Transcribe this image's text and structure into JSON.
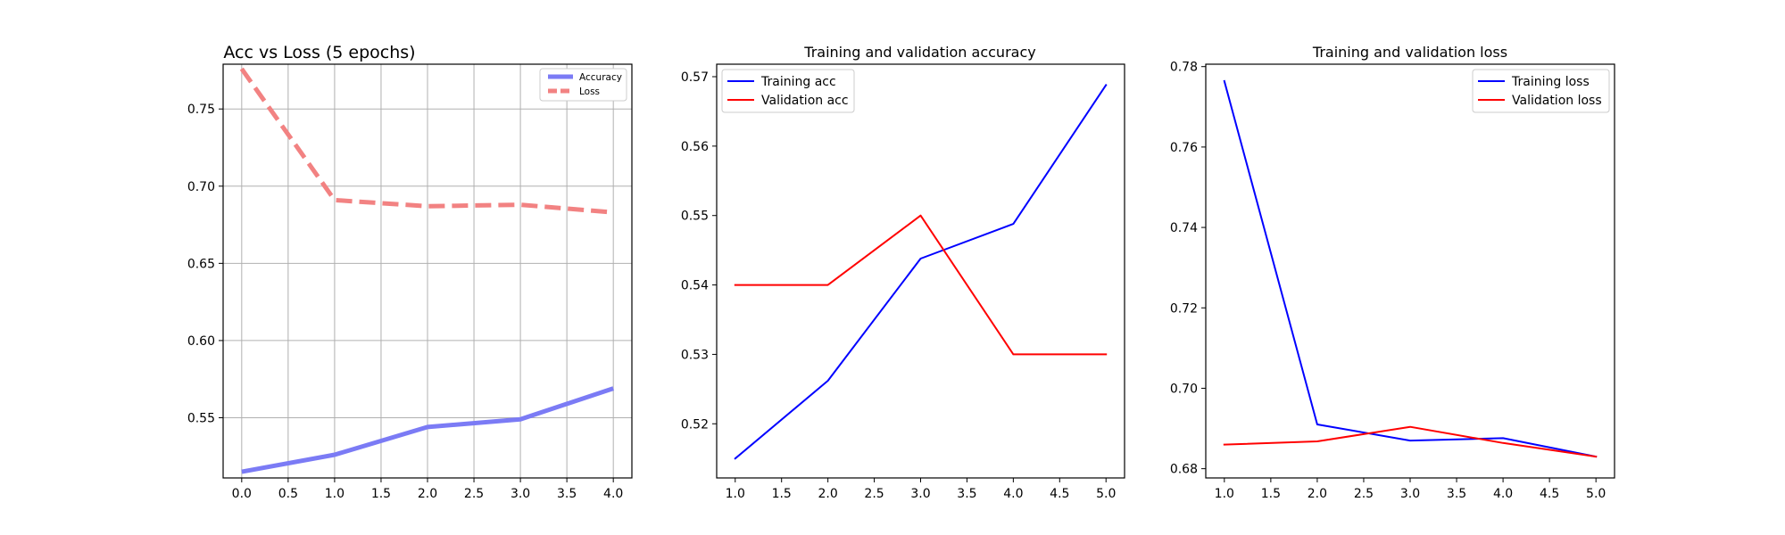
{
  "chart_data": [
    {
      "type": "line",
      "title": "Acc vs Loss (5 epochs)",
      "xlabel": "",
      "ylabel": "",
      "xlim": [
        -0.2,
        4.2
      ],
      "ylim": [
        0.511,
        0.779
      ],
      "xticks": [
        0.0,
        0.5,
        1.0,
        1.5,
        2.0,
        2.5,
        3.0,
        3.5,
        4.0
      ],
      "xtick_labels": [
        "0.0",
        "0.5",
        "1.0",
        "1.5",
        "2.0",
        "2.5",
        "3.0",
        "3.5",
        "4.0"
      ],
      "yticks": [
        0.55,
        0.6,
        0.65,
        0.7,
        0.75
      ],
      "ytick_labels": [
        "0.55",
        "0.60",
        "0.65",
        "0.70",
        "0.75"
      ],
      "grid": true,
      "legend_position": "upper right",
      "series": [
        {
          "name": "Accuracy",
          "x": [
            0,
            1,
            2,
            3,
            4
          ],
          "values": [
            0.515,
            0.526,
            0.544,
            0.549,
            0.569
          ],
          "color": "#7b7bf5",
          "dash": "solid",
          "width": "thick"
        },
        {
          "name": "Loss",
          "x": [
            0,
            1,
            2,
            3,
            4
          ],
          "values": [
            0.776,
            0.691,
            0.687,
            0.688,
            0.683
          ],
          "color": "#f28282",
          "dash": "dashed",
          "width": "thick"
        }
      ]
    },
    {
      "type": "line",
      "title": "Training and validation accuracy",
      "xlabel": "",
      "ylabel": "",
      "xlim": [
        0.8,
        5.2
      ],
      "ylim": [
        0.5122,
        0.5718
      ],
      "xticks": [
        1.0,
        1.5,
        2.0,
        2.5,
        3.0,
        3.5,
        4.0,
        4.5,
        5.0
      ],
      "xtick_labels": [
        "1.0",
        "1.5",
        "2.0",
        "2.5",
        "3.0",
        "3.5",
        "4.0",
        "4.5",
        "5.0"
      ],
      "yticks": [
        0.52,
        0.53,
        0.54,
        0.55,
        0.56,
        0.57
      ],
      "ytick_labels": [
        "0.52",
        "0.53",
        "0.54",
        "0.55",
        "0.56",
        "0.57"
      ],
      "grid": false,
      "legend_position": "upper left",
      "series": [
        {
          "name": "Training acc",
          "x": [
            1,
            2,
            3,
            4,
            5
          ],
          "values": [
            0.515,
            0.5262,
            0.5438,
            0.5488,
            0.5688
          ],
          "color": "#0000ff",
          "dash": "solid",
          "width": "normal"
        },
        {
          "name": "Validation acc",
          "x": [
            1,
            2,
            3,
            4,
            5
          ],
          "values": [
            0.54,
            0.54,
            0.55,
            0.53,
            0.53
          ],
          "color": "#ff0000",
          "dash": "solid",
          "width": "normal"
        }
      ]
    },
    {
      "type": "line",
      "title": "Training and validation loss",
      "xlabel": "",
      "ylabel": "",
      "xlim": [
        0.8,
        5.2
      ],
      "ylim": [
        0.6777,
        0.7806
      ],
      "xticks": [
        1.0,
        1.5,
        2.0,
        2.5,
        3.0,
        3.5,
        4.0,
        4.5,
        5.0
      ],
      "xtick_labels": [
        "1.0",
        "1.5",
        "2.0",
        "2.5",
        "3.0",
        "3.5",
        "4.0",
        "4.5",
        "5.0"
      ],
      "yticks": [
        0.68,
        0.7,
        0.72,
        0.74,
        0.76,
        0.78
      ],
      "ytick_labels": [
        "0.68",
        "0.70",
        "0.72",
        "0.74",
        "0.76",
        "0.78"
      ],
      "grid": false,
      "legend_position": "upper right",
      "series": [
        {
          "name": "Training loss",
          "x": [
            1,
            2,
            3,
            4,
            5
          ],
          "values": [
            0.7764,
            0.691,
            0.687,
            0.6876,
            0.683
          ],
          "color": "#0000ff",
          "dash": "solid",
          "width": "normal"
        },
        {
          "name": "Validation loss",
          "x": [
            1,
            2,
            3,
            4,
            5
          ],
          "values": [
            0.686,
            0.6868,
            0.6904,
            0.6864,
            0.683
          ],
          "color": "#ff0000",
          "dash": "solid",
          "width": "normal"
        }
      ]
    }
  ]
}
